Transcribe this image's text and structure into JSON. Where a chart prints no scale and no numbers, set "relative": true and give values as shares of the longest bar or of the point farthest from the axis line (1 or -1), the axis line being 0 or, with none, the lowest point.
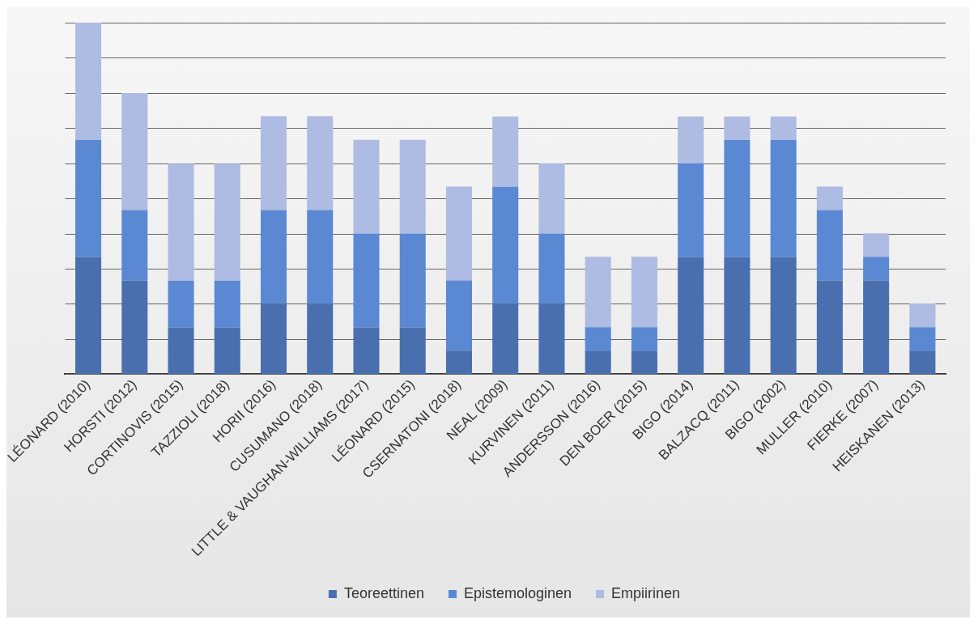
{
  "chart_data": {
    "type": "bar",
    "stacked": true,
    "relative": true,
    "grid": "y",
    "legend": "bottom",
    "categories": [
      "LÉONARD (2010)",
      "HORSTI (2012)",
      "CORTINOVIS (2015)",
      "TAZZIOLI (2018)",
      "HORII (2016)",
      "CUSUMANO (2018)",
      "LITTLE & VAUGHAN-WILLIAMS (2017)",
      "LÉONARD (2015)",
      "CSERNATONI (2018)",
      "NEAL (2009)",
      "KURVINEN (2011)",
      "ANDERSSON (2016)",
      "DEN BOER (2015)",
      "BIGO (2014)",
      "BALZACQ (2011)",
      "BIGO (2002)",
      "MULLER (2010)",
      "FIERKE (2007)",
      "HEISKANEN (2013)"
    ],
    "series": [
      {
        "name": "Teoreettinen",
        "color": "#4a6fae",
        "values": [
          0.333,
          0.267,
          0.133,
          0.133,
          0.2,
          0.2,
          0.133,
          0.133,
          0.067,
          0.2,
          0.2,
          0.067,
          0.067,
          0.333,
          0.333,
          0.333,
          0.267,
          0.267,
          0.067
        ]
      },
      {
        "name": "Epistemologinen",
        "color": "#5b88d2",
        "values": [
          0.333,
          0.2,
          0.133,
          0.133,
          0.267,
          0.267,
          0.267,
          0.267,
          0.2,
          0.333,
          0.2,
          0.067,
          0.067,
          0.267,
          0.333,
          0.333,
          0.2,
          0.067,
          0.067
        ]
      },
      {
        "name": "Empiirinen",
        "color": "#aebbe2",
        "values": [
          0.334,
          0.333,
          0.333,
          0.333,
          0.267,
          0.267,
          0.267,
          0.267,
          0.267,
          0.2,
          0.2,
          0.2,
          0.2,
          0.133,
          0.067,
          0.067,
          0.067,
          0.067,
          0.067
        ]
      }
    ]
  }
}
